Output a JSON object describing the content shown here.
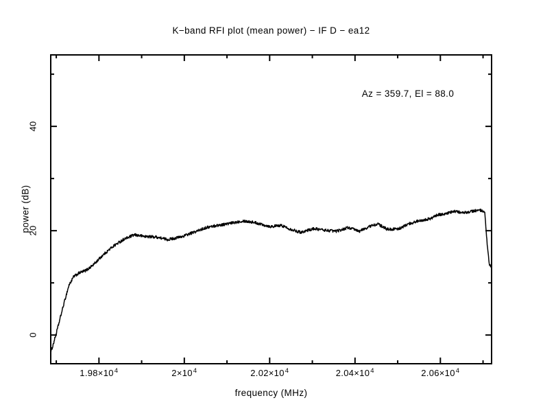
{
  "title": "K−band RFI plot (mean power) − IF D − ea12",
  "annotation": "Az = 359.7, El = 88.0",
  "chart_data": {
    "type": "line",
    "title": "K−band RFI plot (mean power) − IF D − ea12",
    "xlabel": "frequency (MHz)",
    "ylabel": "power (dB)",
    "xlim": [
      19687,
      20720
    ],
    "ylim": [
      -5.5,
      53.7
    ],
    "grid": false,
    "legend_position": "none",
    "background": "#ffffff",
    "line_color": "#000000",
    "axis_color": "#000000",
    "noise_amplitude_db": 0.27,
    "x_major_ticks": [
      {
        "value": 19800,
        "base": "1.98×10",
        "exp": "4"
      },
      {
        "value": 20000,
        "base": "2×10",
        "exp": "4"
      },
      {
        "value": 20200,
        "base": "2.02×10",
        "exp": "4"
      },
      {
        "value": 20400,
        "base": "2.04×10",
        "exp": "4"
      },
      {
        "value": 20600,
        "base": "2.06×10",
        "exp": "4"
      }
    ],
    "x_minor_ticks": [
      19700,
      19900,
      20100,
      20300,
      20500,
      20700
    ],
    "y_major_ticks": [
      {
        "value": 0,
        "label": "0"
      },
      {
        "value": 20,
        "label": "20"
      },
      {
        "value": 40,
        "label": "40"
      }
    ],
    "y_minor_ticks": [
      10,
      30,
      50
    ],
    "annotations": [
      {
        "text": "Az = 359.7, El = 88.0",
        "x_frequency_mhz": 20503,
        "y_db": 46
      }
    ],
    "series": [
      {
        "name": "mean power",
        "x": [
          19687,
          19692,
          19698,
          19709,
          19721,
          19730,
          19741,
          19754,
          19770,
          19786,
          19809,
          19833,
          19857,
          19883,
          19908,
          19934,
          19961,
          19992,
          20026,
          20051,
          20076,
          20108,
          20137,
          20164,
          20201,
          20228,
          20249,
          20272,
          20304,
          20329,
          20357,
          20384,
          20410,
          20437,
          20453,
          20474,
          20501,
          20529,
          20554,
          20577,
          20593,
          20614,
          20635,
          20654,
          20678,
          20694,
          20704,
          20710,
          20715,
          20720
        ],
        "y": [
          -3.3,
          -2.0,
          -0.3,
          3.2,
          7.0,
          9.6,
          11.2,
          11.9,
          12.4,
          13.4,
          15.3,
          17.0,
          18.3,
          19.2,
          18.9,
          18.8,
          18.3,
          18.8,
          19.8,
          20.6,
          21.0,
          21.4,
          21.9,
          21.6,
          20.8,
          21.0,
          20.3,
          19.7,
          20.4,
          20.1,
          19.9,
          20.6,
          19.9,
          20.9,
          21.3,
          20.3,
          20.3,
          21.4,
          22.0,
          22.3,
          23.0,
          23.3,
          23.7,
          23.4,
          23.8,
          23.9,
          23.4,
          17.0,
          13.5,
          12.8
        ]
      }
    ]
  }
}
